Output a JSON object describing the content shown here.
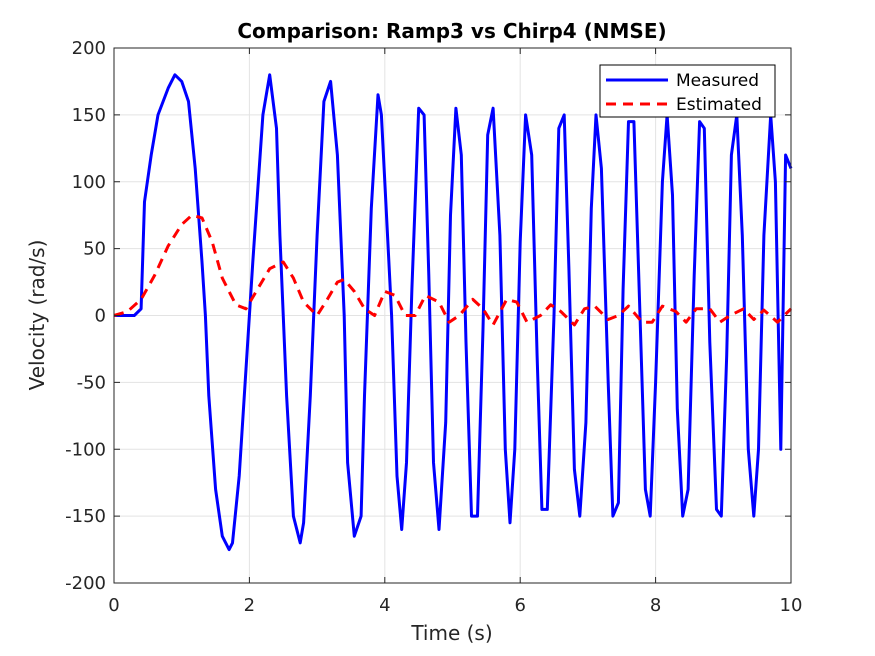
{
  "chart_data": {
    "type": "line",
    "title": "Comparison: Ramp3 vs Chirp4 (NMSE)",
    "xlabel": "Time (s)",
    "ylabel": "Velocity (rad/s)",
    "xlim": [
      0,
      10
    ],
    "ylim": [
      -200,
      200
    ],
    "xticks": [
      0,
      2,
      4,
      6,
      8,
      10
    ],
    "yticks": [
      -200,
      -150,
      -100,
      -50,
      0,
      50,
      100,
      150,
      200
    ],
    "xtick_labels": [
      "0",
      "2",
      "4",
      "6",
      "8",
      "10"
    ],
    "ytick_labels": [
      "-200",
      "-150",
      "-100",
      "-50",
      "0",
      "50",
      "100",
      "150",
      "200"
    ],
    "grid": true,
    "legend_position": "top-right",
    "series": [
      {
        "name": "Measured",
        "color": "#0000ff",
        "style": "solid",
        "x": [
          0,
          0.3,
          0.4,
          0.45,
          0.55,
          0.65,
          0.8,
          0.9,
          1.0,
          1.1,
          1.2,
          1.3,
          1.35,
          1.4,
          1.5,
          1.6,
          1.7,
          1.75,
          1.85,
          1.95,
          2.05,
          2.2,
          2.3,
          2.4,
          2.45,
          2.55,
          2.65,
          2.75,
          2.8,
          2.9,
          3.0,
          3.1,
          3.2,
          3.3,
          3.4,
          3.45,
          3.55,
          3.65,
          3.7,
          3.8,
          3.9,
          3.95,
          4.1,
          4.18,
          4.25,
          4.32,
          4.4,
          4.5,
          4.58,
          4.65,
          4.72,
          4.8,
          4.9,
          4.97,
          5.05,
          5.13,
          5.2,
          5.28,
          5.37,
          5.45,
          5.52,
          5.6,
          5.7,
          5.78,
          5.85,
          5.92,
          6.0,
          6.08,
          6.17,
          6.25,
          6.32,
          6.4,
          6.5,
          6.57,
          6.65,
          6.72,
          6.8,
          6.88,
          6.97,
          7.05,
          7.12,
          7.2,
          7.3,
          7.37,
          7.45,
          7.52,
          7.6,
          7.68,
          7.77,
          7.85,
          7.92,
          8.0,
          8.1,
          8.17,
          8.25,
          8.32,
          8.4,
          8.48,
          8.57,
          8.65,
          8.72,
          8.8,
          8.9,
          8.97,
          9.05,
          9.12,
          9.2,
          9.28,
          9.37,
          9.45,
          9.52,
          9.6,
          9.7,
          9.77,
          9.85,
          9.92,
          10.0
        ],
        "y": [
          0,
          0,
          5,
          85,
          120,
          150,
          170,
          180,
          175,
          160,
          110,
          40,
          0,
          -60,
          -130,
          -165,
          -175,
          -170,
          -120,
          -40,
          40,
          150,
          180,
          140,
          60,
          -60,
          -150,
          -170,
          -155,
          -60,
          60,
          160,
          175,
          120,
          0,
          -110,
          -165,
          -150,
          -60,
          80,
          165,
          150,
          0,
          -120,
          -160,
          -110,
          20,
          155,
          150,
          30,
          -110,
          -160,
          -80,
          75,
          155,
          120,
          -20,
          -150,
          -150,
          -10,
          135,
          155,
          60,
          -100,
          -155,
          -100,
          55,
          150,
          120,
          -30,
          -145,
          -145,
          0,
          140,
          150,
          35,
          -115,
          -150,
          -80,
          80,
          150,
          110,
          -50,
          -150,
          -140,
          20,
          145,
          145,
          0,
          -130,
          -150,
          -50,
          100,
          150,
          90,
          -70,
          -150,
          -130,
          30,
          145,
          140,
          -20,
          -145,
          -150,
          -30,
          120,
          150,
          60,
          -100,
          -150,
          -100,
          60,
          150,
          100,
          -100,
          120,
          110
        ]
      },
      {
        "name": "Estimated",
        "color": "#ff0000",
        "style": "dashed",
        "x": [
          0,
          0.2,
          0.4,
          0.6,
          0.8,
          1.0,
          1.15,
          1.3,
          1.45,
          1.6,
          1.8,
          1.95,
          2.1,
          2.3,
          2.5,
          2.65,
          2.8,
          3.0,
          3.15,
          3.3,
          3.4,
          3.55,
          3.7,
          3.85,
          4.0,
          4.15,
          4.3,
          4.45,
          4.6,
          4.8,
          4.95,
          5.1,
          5.3,
          5.45,
          5.6,
          5.8,
          5.95,
          6.1,
          6.3,
          6.45,
          6.6,
          6.8,
          6.95,
          7.1,
          7.3,
          7.45,
          7.6,
          7.8,
          7.95,
          8.1,
          8.3,
          8.45,
          8.6,
          8.8,
          8.95,
          9.1,
          9.3,
          9.45,
          9.6,
          9.8,
          10.0
        ],
        "y": [
          0,
          3,
          12,
          30,
          52,
          68,
          75,
          73,
          55,
          28,
          8,
          5,
          18,
          35,
          40,
          28,
          10,
          0,
          12,
          25,
          27,
          18,
          5,
          0,
          18,
          15,
          0,
          0,
          15,
          10,
          -5,
          0,
          12,
          5,
          -7,
          12,
          10,
          -5,
          0,
          8,
          3,
          -7,
          5,
          7,
          -3,
          0,
          7,
          -5,
          -5,
          7,
          3,
          -5,
          5,
          5,
          -5,
          0,
          5,
          -3,
          4,
          -5,
          5
        ]
      }
    ]
  }
}
